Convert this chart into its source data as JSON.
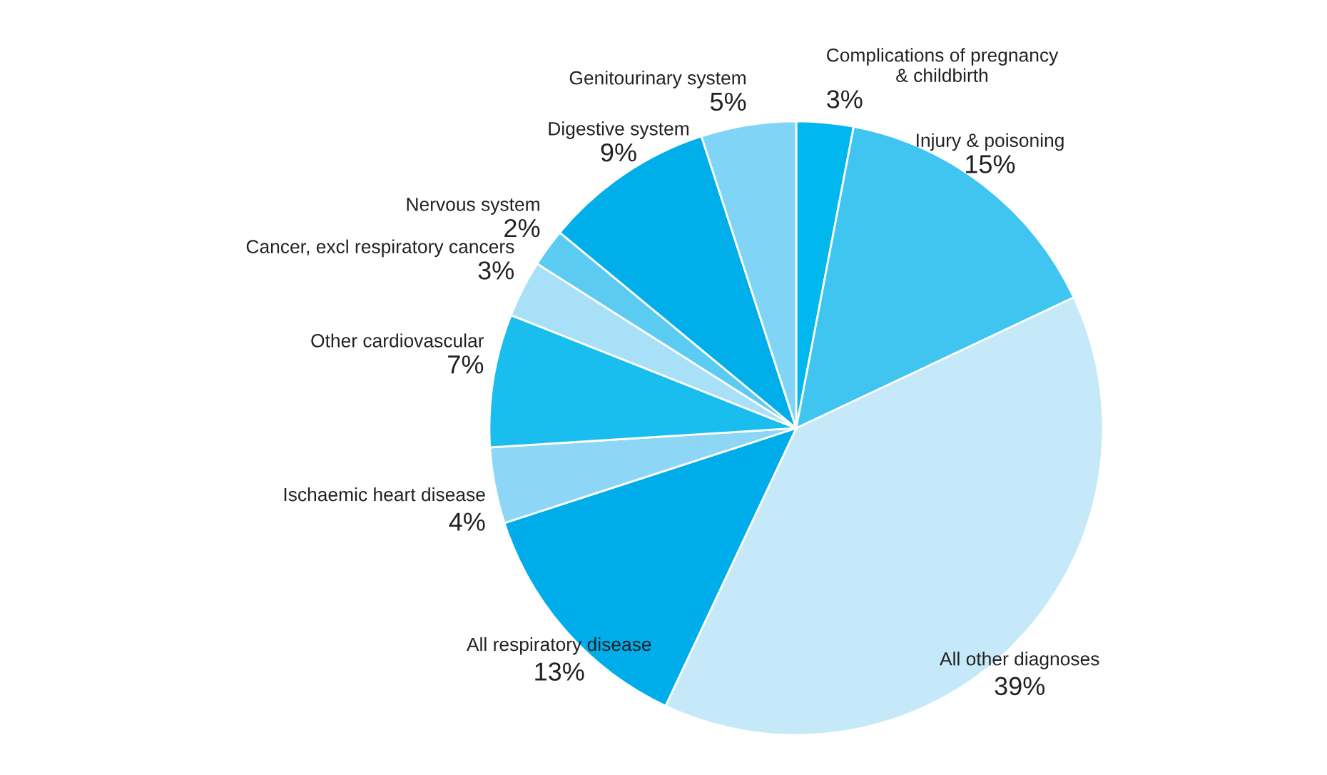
{
  "chart_data": {
    "type": "pie",
    "categories": [
      "Complications of pregnancy\n& childbirth",
      "Injury & poisoning",
      "All other diagnoses",
      "All respiratory disease",
      "Ischaemic heart disease",
      "Other cardiovascular",
      "Cancer, excl respiratory cancers",
      "Nervous system",
      "Digestive system",
      "Genitourinary system"
    ],
    "values": [
      3,
      15,
      39,
      13,
      4,
      7,
      3,
      2,
      9,
      5
    ],
    "colors": [
      "#00b8ee",
      "#40c4f0",
      "#c5e9f8",
      "#00adeb",
      "#8dd6f6",
      "#19bdee",
      "#a8e0f8",
      "#5ccbf2",
      "#00aeea",
      "#80d4f5"
    ],
    "value_labels": [
      "3%",
      "15%",
      "39%",
      "13%",
      "4%",
      "7%",
      "3%",
      "2%",
      "9%",
      "5%"
    ],
    "legend": false
  }
}
